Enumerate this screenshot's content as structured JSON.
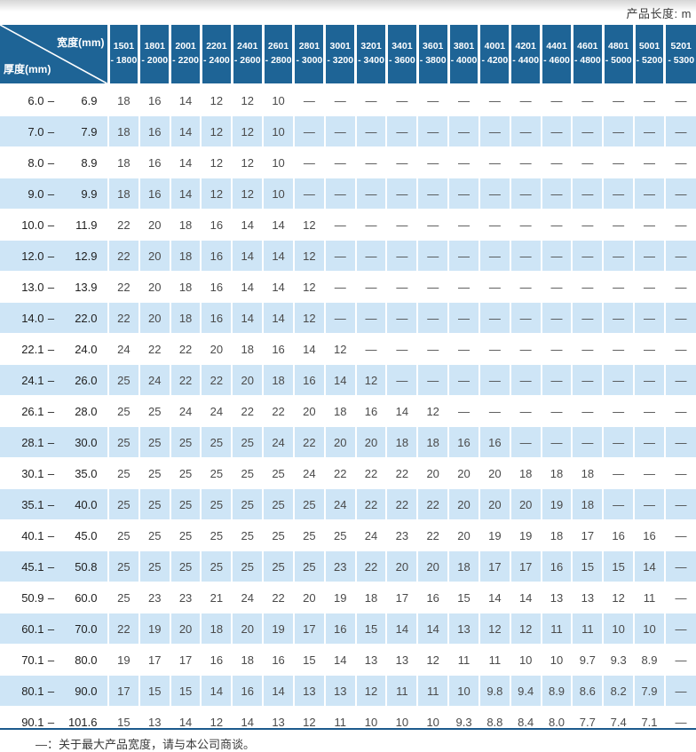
{
  "page": {
    "product_length_label": "产品长度: m",
    "footer_note": "—：关于最大产品宽度，请与本公司商谈。"
  },
  "colors": {
    "header_blue": "#1e6496",
    "row_blue": "#cee5f6",
    "line_blue": "#1c5a8c"
  },
  "table": {
    "corner": {
      "top_right": "宽度(mm)",
      "bottom_left": "厚度(mm)"
    },
    "range_separator": "–",
    "columns": [
      [
        "1501",
        "- 1800"
      ],
      [
        "1801",
        "- 2000"
      ],
      [
        "2001",
        "- 2200"
      ],
      [
        "2201",
        "- 2400"
      ],
      [
        "2401",
        "- 2600"
      ],
      [
        "2601",
        "- 2800"
      ],
      [
        "2801",
        "- 3000"
      ],
      [
        "3001",
        "- 3200"
      ],
      [
        "3201",
        "- 3400"
      ],
      [
        "3401",
        "- 3600"
      ],
      [
        "3601",
        "- 3800"
      ],
      [
        "3801",
        "- 4000"
      ],
      [
        "4001",
        "- 4200"
      ],
      [
        "4201",
        "- 4400"
      ],
      [
        "4401",
        "- 4600"
      ],
      [
        "4601",
        "- 4800"
      ],
      [
        "4801",
        "- 5000"
      ],
      [
        "5001",
        "- 5200"
      ],
      [
        "5201",
        "- 5300"
      ]
    ],
    "rows": [
      {
        "range": [
          "6.0",
          "6.9"
        ],
        "values": [
          "18",
          "16",
          "14",
          "12",
          "12",
          "10",
          "—",
          "—",
          "—",
          "—",
          "—",
          "—",
          "—",
          "—",
          "—",
          "—",
          "—",
          "—",
          "—"
        ]
      },
      {
        "range": [
          "7.0",
          "7.9"
        ],
        "values": [
          "18",
          "16",
          "14",
          "12",
          "12",
          "10",
          "—",
          "—",
          "—",
          "—",
          "—",
          "—",
          "—",
          "—",
          "—",
          "—",
          "—",
          "—",
          "—"
        ]
      },
      {
        "range": [
          "8.0",
          "8.9"
        ],
        "values": [
          "18",
          "16",
          "14",
          "12",
          "12",
          "10",
          "—",
          "—",
          "—",
          "—",
          "—",
          "—",
          "—",
          "—",
          "—",
          "—",
          "—",
          "—",
          "—"
        ]
      },
      {
        "range": [
          "9.0",
          "9.9"
        ],
        "values": [
          "18",
          "16",
          "14",
          "12",
          "12",
          "10",
          "—",
          "—",
          "—",
          "—",
          "—",
          "—",
          "—",
          "—",
          "—",
          "—",
          "—",
          "—",
          "—"
        ]
      },
      {
        "range": [
          "10.0",
          "11.9"
        ],
        "values": [
          "22",
          "20",
          "18",
          "16",
          "14",
          "14",
          "12",
          "—",
          "—",
          "—",
          "—",
          "—",
          "—",
          "—",
          "—",
          "—",
          "—",
          "—",
          "—"
        ]
      },
      {
        "range": [
          "12.0",
          "12.9"
        ],
        "values": [
          "22",
          "20",
          "18",
          "16",
          "14",
          "14",
          "12",
          "—",
          "—",
          "—",
          "—",
          "—",
          "—",
          "—",
          "—",
          "—",
          "—",
          "—",
          "—"
        ]
      },
      {
        "range": [
          "13.0",
          "13.9"
        ],
        "values": [
          "22",
          "20",
          "18",
          "16",
          "14",
          "14",
          "12",
          "—",
          "—",
          "—",
          "—",
          "—",
          "—",
          "—",
          "—",
          "—",
          "—",
          "—",
          "—"
        ]
      },
      {
        "range": [
          "14.0",
          "22.0"
        ],
        "values": [
          "22",
          "20",
          "18",
          "16",
          "14",
          "14",
          "12",
          "—",
          "—",
          "—",
          "—",
          "—",
          "—",
          "—",
          "—",
          "—",
          "—",
          "—",
          "—"
        ]
      },
      {
        "range": [
          "22.1",
          "24.0"
        ],
        "values": [
          "24",
          "22",
          "22",
          "20",
          "18",
          "16",
          "14",
          "12",
          "—",
          "—",
          "—",
          "—",
          "—",
          "—",
          "—",
          "—",
          "—",
          "—",
          "—"
        ]
      },
      {
        "range": [
          "24.1",
          "26.0"
        ],
        "values": [
          "25",
          "24",
          "22",
          "22",
          "20",
          "18",
          "16",
          "14",
          "12",
          "—",
          "—",
          "—",
          "—",
          "—",
          "—",
          "—",
          "—",
          "—",
          "—"
        ]
      },
      {
        "range": [
          "26.1",
          "28.0"
        ],
        "values": [
          "25",
          "25",
          "24",
          "24",
          "22",
          "22",
          "20",
          "18",
          "16",
          "14",
          "12",
          "—",
          "—",
          "—",
          "—",
          "—",
          "—",
          "—",
          "—"
        ]
      },
      {
        "range": [
          "28.1",
          "30.0"
        ],
        "values": [
          "25",
          "25",
          "25",
          "25",
          "25",
          "24",
          "22",
          "20",
          "20",
          "18",
          "18",
          "16",
          "16",
          "—",
          "—",
          "—",
          "—",
          "—",
          "—"
        ]
      },
      {
        "range": [
          "30.1",
          "35.0"
        ],
        "values": [
          "25",
          "25",
          "25",
          "25",
          "25",
          "25",
          "24",
          "22",
          "22",
          "22",
          "20",
          "20",
          "20",
          "18",
          "18",
          "18",
          "—",
          "—",
          "—"
        ]
      },
      {
        "range": [
          "35.1",
          "40.0"
        ],
        "values": [
          "25",
          "25",
          "25",
          "25",
          "25",
          "25",
          "25",
          "24",
          "22",
          "22",
          "22",
          "20",
          "20",
          "20",
          "19",
          "18",
          "—",
          "—",
          "—"
        ]
      },
      {
        "range": [
          "40.1",
          "45.0"
        ],
        "values": [
          "25",
          "25",
          "25",
          "25",
          "25",
          "25",
          "25",
          "25",
          "24",
          "23",
          "22",
          "20",
          "19",
          "19",
          "18",
          "17",
          "16",
          "16",
          "—"
        ]
      },
      {
        "range": [
          "45.1",
          "50.8"
        ],
        "values": [
          "25",
          "25",
          "25",
          "25",
          "25",
          "25",
          "25",
          "23",
          "22",
          "20",
          "20",
          "18",
          "17",
          "17",
          "16",
          "15",
          "15",
          "14",
          "—"
        ]
      },
      {
        "range": [
          "50.9",
          "60.0"
        ],
        "values": [
          "25",
          "23",
          "23",
          "21",
          "24",
          "22",
          "20",
          "19",
          "18",
          "17",
          "16",
          "15",
          "14",
          "14",
          "13",
          "13",
          "12",
          "11",
          "—"
        ]
      },
      {
        "range": [
          "60.1",
          "70.0"
        ],
        "values": [
          "22",
          "19",
          "20",
          "18",
          "20",
          "19",
          "17",
          "16",
          "15",
          "14",
          "14",
          "13",
          "12",
          "12",
          "11",
          "11",
          "10",
          "10",
          "—"
        ]
      },
      {
        "range": [
          "70.1",
          "80.0"
        ],
        "values": [
          "19",
          "17",
          "17",
          "16",
          "18",
          "16",
          "15",
          "14",
          "13",
          "13",
          "12",
          "11",
          "11",
          "10",
          "10",
          "9.7",
          "9.3",
          "8.9",
          "—"
        ]
      },
      {
        "range": [
          "80.1",
          "90.0"
        ],
        "values": [
          "17",
          "15",
          "15",
          "14",
          "16",
          "14",
          "13",
          "13",
          "12",
          "11",
          "11",
          "10",
          "9.8",
          "9.4",
          "8.9",
          "8.6",
          "8.2",
          "7.9",
          "—"
        ]
      },
      {
        "range": [
          "90.1",
          "101.6"
        ],
        "values": [
          "15",
          "13",
          "14",
          "12",
          "14",
          "13",
          "12",
          "11",
          "10",
          "10",
          "10",
          "9.3",
          "8.8",
          "8.4",
          "8.0",
          "7.7",
          "7.4",
          "7.1",
          "—"
        ]
      }
    ]
  }
}
